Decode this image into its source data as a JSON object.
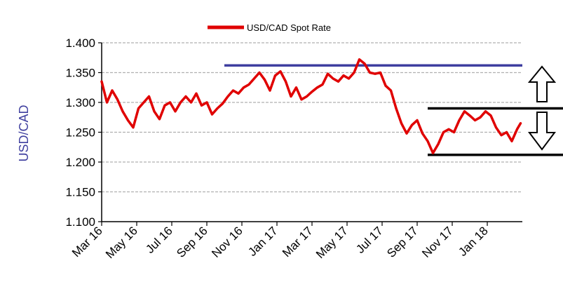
{
  "chart_data": {
    "type": "line",
    "ylabel": "USD/CAD",
    "ylabel_color": "#3f3f9f",
    "ylim": [
      1.1,
      1.4
    ],
    "yticks": [
      "1.100",
      "1.150",
      "1.200",
      "1.250",
      "1.300",
      "1.350",
      "1.400"
    ],
    "xticks": [
      "Mar 16",
      "May 16",
      "Jul 16",
      "Sep 16",
      "Nov 16",
      "Jan 17",
      "Mar 17",
      "May 17",
      "Jul 17",
      "Sep 17",
      "Nov 17",
      "Jan 18"
    ],
    "xlim": [
      0,
      24
    ],
    "grid": "horizontal dashed",
    "legend_position": "top-center",
    "series": [
      {
        "name": "USD/CAD Spot Rate",
        "color": "#e00000",
        "x": [
          0,
          0.3,
          0.6,
          0.9,
          1.2,
          1.5,
          1.8,
          2.1,
          2.4,
          2.7,
          3.0,
          3.3,
          3.6,
          3.9,
          4.2,
          4.5,
          4.8,
          5.1,
          5.4,
          5.7,
          6.0,
          6.3,
          6.6,
          6.9,
          7.2,
          7.5,
          7.8,
          8.1,
          8.4,
          8.7,
          9.0,
          9.3,
          9.6,
          9.9,
          10.2,
          10.5,
          10.8,
          11.1,
          11.4,
          11.7,
          12.0,
          12.3,
          12.6,
          12.9,
          13.2,
          13.5,
          13.8,
          14.1,
          14.4,
          14.7,
          15.0,
          15.3,
          15.6,
          15.9,
          16.2,
          16.5,
          16.8,
          17.1,
          17.4,
          17.7,
          18.0,
          18.3,
          18.6,
          18.9,
          19.2,
          19.5,
          19.8,
          20.1,
          20.4,
          20.7,
          21.0,
          21.3,
          21.6,
          21.9,
          22.2,
          22.5,
          22.8,
          23.1,
          23.4,
          23.7,
          23.9
        ],
        "values": [
          1.335,
          1.3,
          1.32,
          1.305,
          1.285,
          1.27,
          1.258,
          1.29,
          1.3,
          1.31,
          1.285,
          1.272,
          1.295,
          1.3,
          1.285,
          1.3,
          1.31,
          1.3,
          1.315,
          1.295,
          1.3,
          1.28,
          1.29,
          1.298,
          1.31,
          1.32,
          1.315,
          1.325,
          1.33,
          1.34,
          1.35,
          1.338,
          1.32,
          1.345,
          1.352,
          1.335,
          1.31,
          1.325,
          1.305,
          1.31,
          1.318,
          1.325,
          1.33,
          1.348,
          1.34,
          1.335,
          1.345,
          1.34,
          1.35,
          1.372,
          1.365,
          1.35,
          1.348,
          1.35,
          1.328,
          1.32,
          1.29,
          1.265,
          1.248,
          1.262,
          1.27,
          1.248,
          1.235,
          1.215,
          1.23,
          1.25,
          1.255,
          1.25,
          1.27,
          1.285,
          1.278,
          1.27,
          1.275,
          1.285,
          1.278,
          1.258,
          1.245,
          1.25,
          1.235,
          1.255,
          1.265
        ]
      }
    ],
    "annotations": [
      {
        "type": "hline",
        "y": 1.362,
        "x_start": 7.0,
        "x_end": 24.0,
        "color": "#3f3fa0"
      },
      {
        "type": "hline",
        "y": 1.29,
        "x_start": 18.6,
        "x_end": 30.2,
        "color": "#000000"
      },
      {
        "type": "hline",
        "y": 1.212,
        "x_start": 18.6,
        "x_end": 31.2,
        "color": "#000000"
      }
    ]
  }
}
